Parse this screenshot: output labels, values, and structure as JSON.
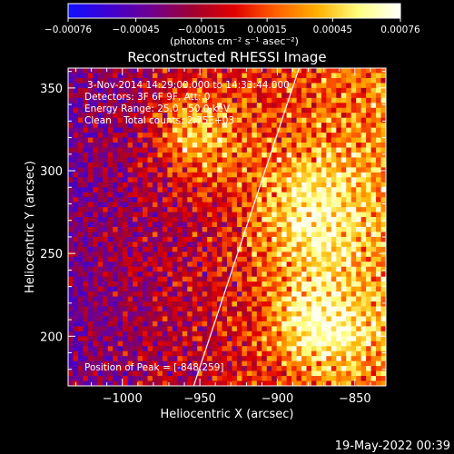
{
  "chart_data": {
    "type": "heatmap",
    "title": "Reconstructed RHESSI Image",
    "xlabel": "Heliocentric X (arcsec)",
    "ylabel": "Heliocentric Y (arcsec)",
    "xlim": [
      -1035,
      -830
    ],
    "ylim": [
      170,
      362
    ],
    "xticks": [
      -1000,
      -950,
      -900,
      -850
    ],
    "xtick_labels": [
      "−1000",
      "−950",
      "−900",
      "−850"
    ],
    "yticks": [
      200,
      250,
      300,
      350
    ],
    "ytick_labels": [
      "200",
      "250",
      "300",
      "350"
    ],
    "colorbar": {
      "min": -0.00076,
      "max": 0.00076,
      "ticks": [
        -0.00076,
        -0.00045,
        -0.00015,
        0.00015,
        0.00045,
        0.00076
      ],
      "tick_labels": [
        "−0.00076",
        "−0.00045",
        "−0.00015",
        "0.00015",
        "0.00045",
        "0.00076"
      ],
      "units": "(photons cm⁻² s⁻¹ asec⁻²)",
      "colors": [
        "#1010ff",
        "#4000d0",
        "#700090",
        "#a00030",
        "#e00000",
        "#ff6000",
        "#ffb000",
        "#ffff80",
        "#ffffff"
      ]
    },
    "info_lines": [
      "3-Nov-2014 14:29:00.000 to 14:33:44.000",
      "Detectors: 3F 6F 9F, Att: 0",
      "Energy Range: 25.0 - 50.0 keV",
      "Clean    Total counts: 2.75E+03"
    ],
    "peak_label": "Position of Peak = [-848,259]",
    "peak_position": [
      -848,
      259
    ],
    "limb_line": [
      [
        -954,
        170
      ],
      [
        -886,
        362
      ]
    ],
    "limb_color": "#ffffff"
  },
  "footer": {
    "timestamp": "19-May-2022 00:39"
  }
}
